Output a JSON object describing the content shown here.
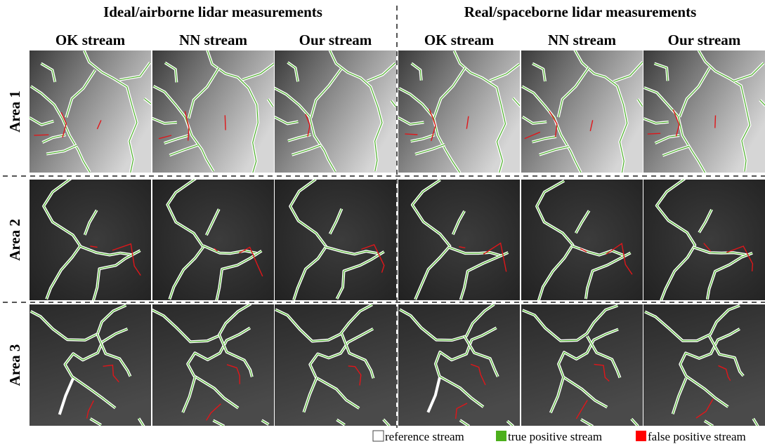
{
  "header": {
    "groups": [
      "Ideal/airborne lidar measurements",
      "Real/spaceborne lidar measurements"
    ],
    "columns": [
      "OK stream",
      "NN stream",
      "Our stream",
      "OK stream",
      "NN stream",
      "Our stream"
    ]
  },
  "rows": [
    "Area 1",
    "Area 2",
    "Area 3"
  ],
  "legend": [
    "reference stream",
    "true positive stream",
    "false positive stream"
  ]
}
